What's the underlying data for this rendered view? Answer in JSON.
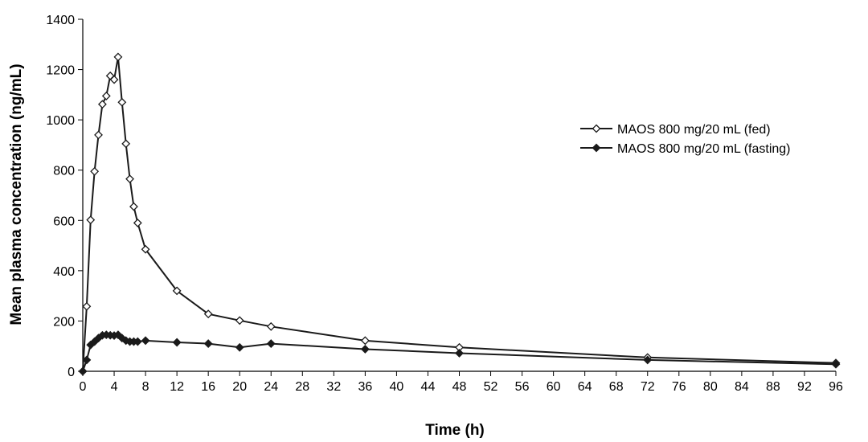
{
  "chart_data": {
    "type": "line",
    "title": "",
    "xlabel": "Time (h)",
    "ylabel": "Mean plasma concentration (ng/mL)",
    "xlim": [
      0,
      96
    ],
    "ylim": [
      0,
      1400
    ],
    "xticks": [
      0,
      4,
      8,
      12,
      16,
      20,
      24,
      28,
      32,
      36,
      40,
      44,
      48,
      52,
      56,
      60,
      64,
      68,
      72,
      76,
      80,
      84,
      88,
      92,
      96
    ],
    "yticks": [
      0,
      200,
      400,
      600,
      800,
      1000,
      1200,
      1400
    ],
    "grid": false,
    "legend_position": "top-right",
    "series": [
      {
        "name": "MAOS 800 mg/20 mL (fed)",
        "marker": "open-diamond",
        "color": "#1a1a1a",
        "x": [
          0,
          0.5,
          1,
          1.5,
          2,
          2.5,
          3,
          3.5,
          4,
          4.5,
          5,
          5.5,
          6,
          6.5,
          7,
          8,
          12,
          16,
          20,
          24,
          36,
          48,
          72,
          96
        ],
        "y": [
          0,
          258,
          602,
          795,
          940,
          1062,
          1095,
          1175,
          1160,
          1250,
          1070,
          905,
          765,
          655,
          590,
          485,
          320,
          228,
          202,
          178,
          122,
          95,
          55,
          33
        ]
      },
      {
        "name": "MAOS 800 mg/20 mL (fasting)",
        "marker": "filled-diamond",
        "color": "#1a1a1a",
        "x": [
          0,
          0.5,
          1,
          1.5,
          2,
          2.5,
          3,
          3.5,
          4,
          4.5,
          5,
          5.5,
          6,
          6.5,
          7,
          8,
          12,
          16,
          20,
          24,
          36,
          48,
          72,
          96
        ],
        "y": [
          0,
          45,
          105,
          118,
          132,
          143,
          145,
          143,
          142,
          145,
          132,
          122,
          118,
          118,
          118,
          122,
          115,
          110,
          95,
          110,
          88,
          72,
          45,
          28
        ]
      }
    ]
  }
}
